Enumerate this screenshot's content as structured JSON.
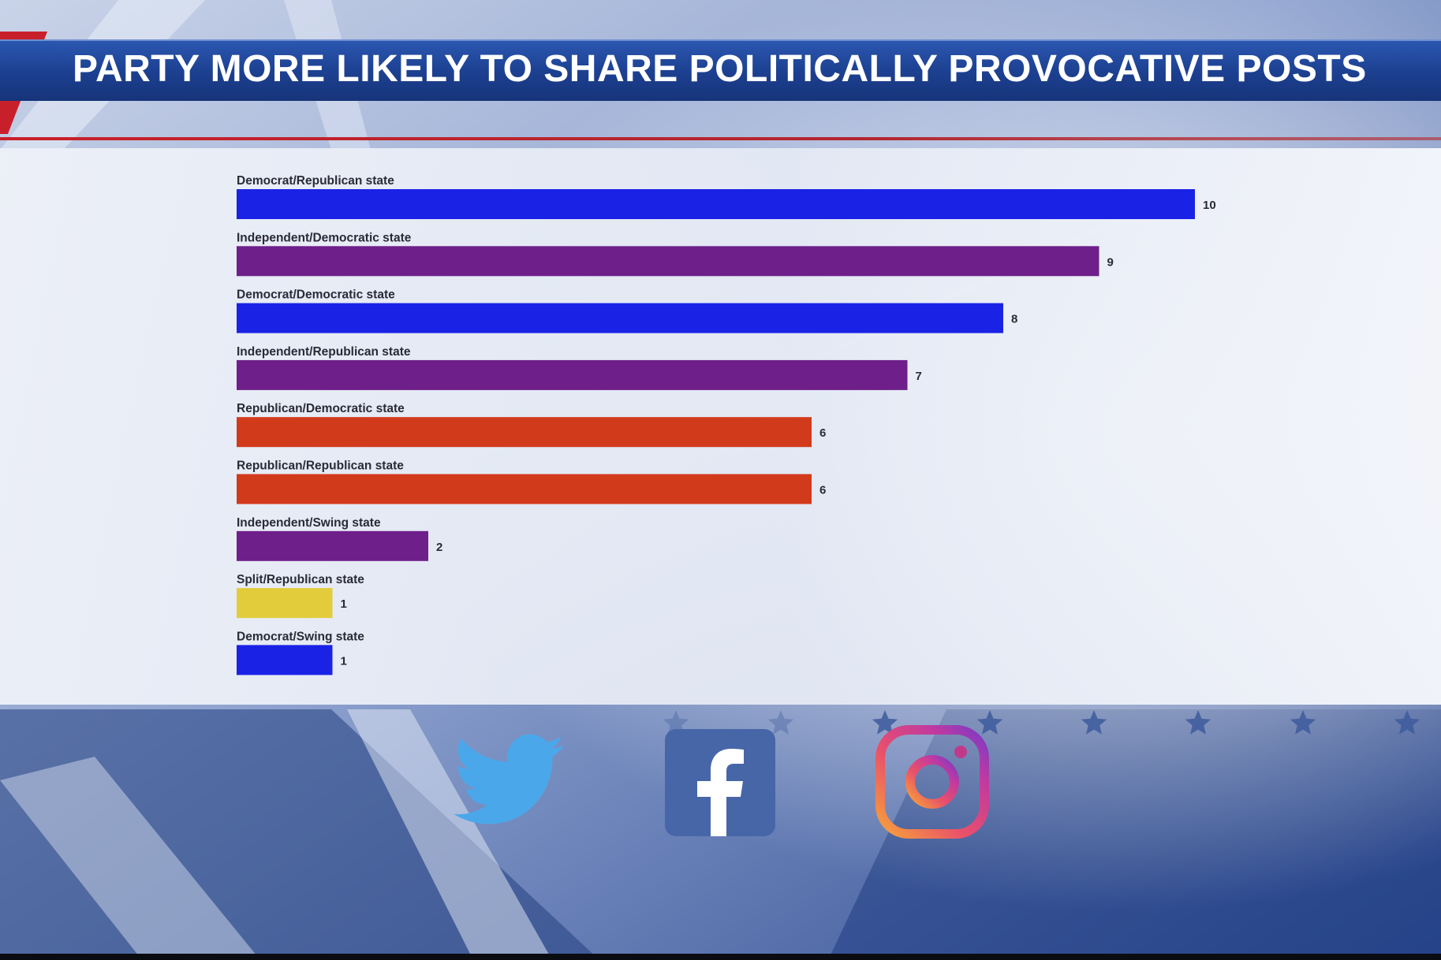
{
  "banner": {
    "title": "PARTY MORE LIKELY TO SHARE POLITICALLY PROVOCATIVE POSTS"
  },
  "colors": {
    "democrat": "#1a22e6",
    "independent": "#6e1f8a",
    "republican": "#d23a1c",
    "split": "#e2cc3c"
  },
  "chart_data": {
    "type": "bar",
    "orientation": "horizontal",
    "grid": false,
    "legend": "none",
    "xlim": [
      0,
      10
    ],
    "categories": [
      "Democrat/Republican state",
      "Independent/Democratic state",
      "Democrat/Democratic state",
      "Independent/Republican state",
      "Republican/Democratic state",
      "Republican/Republican state",
      "Independent/Swing state",
      "Split/Republican state",
      "Democrat/Swing state"
    ],
    "values": [
      10,
      9,
      8,
      7,
      6,
      6,
      2,
      1,
      1
    ],
    "bar_colors": [
      "#1a22e6",
      "#6e1f8a",
      "#1a22e6",
      "#6e1f8a",
      "#d23a1c",
      "#d23a1c",
      "#6e1f8a",
      "#e2cc3c",
      "#1a22e6"
    ]
  },
  "icons": [
    "twitter-icon",
    "facebook-icon",
    "instagram-icon"
  ]
}
